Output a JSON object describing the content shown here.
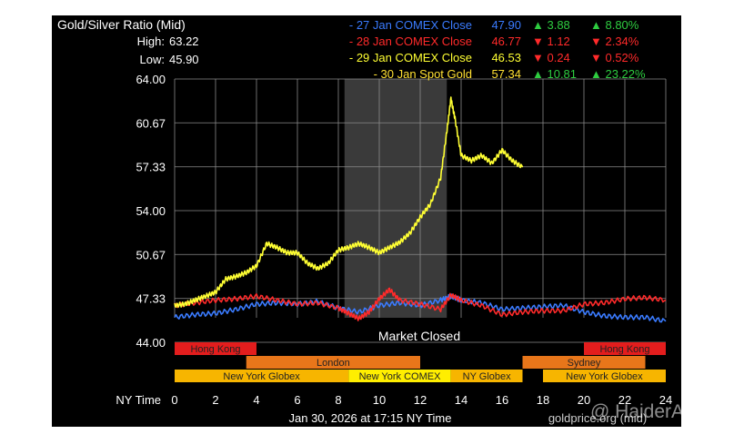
{
  "header": {
    "title": "Gold/Silver Ratio (Mid)",
    "high_label": "High:",
    "high_value": "63.22",
    "low_label": "Low:",
    "low_value": "45.90"
  },
  "legend": [
    {
      "label": "- 27 Jan COMEX Close",
      "value": "47.90",
      "change": "▲ 3.88",
      "pct": "▲ 8.80%",
      "color": "#3a7bff",
      "change_color": "#2ecc40"
    },
    {
      "label": "- 28 Jan COMEX Close",
      "value": "46.77",
      "change": "▼ 1.12",
      "pct": "▼ 2.34%",
      "color": "#ff2a2a",
      "change_color": "#ff2a2a"
    },
    {
      "label": "- 29 Jan COMEX Close",
      "value": "46.53",
      "change": "▼ 0.24",
      "pct": "▼ 0.52%",
      "color": "#ffff33",
      "change_color": "#ff2a2a"
    },
    {
      "label": "- 30 Jan Spot Gold",
      "value": "57.34",
      "change": "▲ 10.81",
      "pct": "▲ 23.22%",
      "color": "#ffe033",
      "change_color": "#2ecc40"
    }
  ],
  "market_closed_label": "Market Closed",
  "x_axis_label": "NY Time",
  "footer_date": "Jan 30, 2026 at 17:15 NY Time",
  "footer_source": "goldprice.org (mid)",
  "watermark": "@ HaiderAliiii",
  "sessions": [
    {
      "label": "Hong Kong",
      "row": 1,
      "start": 0,
      "end": 4,
      "color": "#e31d1d"
    },
    {
      "label": "Hong Kong",
      "row": 1,
      "start": 20,
      "end": 24,
      "color": "#e31d1d"
    },
    {
      "label": "London",
      "row": 2,
      "start": 3.5,
      "end": 12,
      "color": "#e8761a"
    },
    {
      "label": "Sydney",
      "row": 2,
      "start": 17,
      "end": 23,
      "color": "#e8761a"
    },
    {
      "label": "New York Globex",
      "row": 3,
      "start": 0,
      "end": 8.5,
      "color": "#f7b500"
    },
    {
      "label": "New York COMEX",
      "row": 3,
      "start": 8.5,
      "end": 13.5,
      "color": "#ffee00"
    },
    {
      "label": "NY Globex",
      "row": 3,
      "start": 13.5,
      "end": 17,
      "color": "#f7b500"
    },
    {
      "label": "New York Globex",
      "row": 3,
      "start": 18,
      "end": 24,
      "color": "#f7b500"
    }
  ],
  "chart_data": {
    "type": "line",
    "title": "Gold/Silver Ratio (Mid)",
    "xlabel": "NY Time",
    "ylabel": "",
    "xlim": [
      0,
      24
    ],
    "ylim": [
      44.0,
      64.0
    ],
    "x_ticks": [
      "0",
      "2",
      "4",
      "6",
      "8",
      "10",
      "12",
      "14",
      "16",
      "18",
      "20",
      "22",
      "24"
    ],
    "y_ticks": [
      "44.00",
      "47.33",
      "50.67",
      "54.00",
      "57.33",
      "60.67",
      "64.00"
    ],
    "grid": true,
    "legend_position": "top",
    "shaded_region": {
      "label": "Market Closed",
      "x_start": 8.3,
      "x_end": 13.3
    },
    "series": [
      {
        "name": "27 Jan COMEX Close",
        "color": "#3a7bff",
        "x": [
          0,
          1,
          2,
          3,
          4,
          5,
          6,
          7,
          8,
          9,
          10,
          11,
          12,
          13,
          13.5,
          14,
          15,
          16,
          17,
          18,
          19,
          20,
          21,
          22,
          23,
          24
        ],
        "y": [
          45.9,
          46.1,
          46.2,
          46.5,
          46.9,
          47.0,
          46.9,
          47.1,
          46.6,
          46.3,
          46.8,
          47.0,
          46.8,
          47.2,
          47.5,
          47.2,
          47.0,
          46.5,
          46.6,
          46.7,
          46.8,
          46.3,
          46.0,
          45.9,
          45.9,
          45.6
        ]
      },
      {
        "name": "28 Jan COMEX Close",
        "color": "#ff2a2a",
        "x": [
          0,
          1,
          2,
          3,
          4,
          5,
          6,
          7,
          8,
          8.5,
          9,
          9.5,
          10,
          10.5,
          11,
          12,
          13,
          13.5,
          14,
          15,
          16,
          17,
          18,
          19,
          20,
          21,
          22,
          23,
          24
        ],
        "y": [
          46.8,
          47.0,
          47.2,
          47.3,
          47.5,
          47.2,
          46.9,
          47.0,
          46.6,
          46.2,
          45.8,
          46.3,
          47.3,
          48.0,
          47.2,
          46.9,
          46.5,
          47.6,
          47.2,
          46.8,
          46.1,
          46.3,
          46.4,
          46.4,
          46.9,
          47.0,
          47.3,
          47.4,
          47.2
        ]
      },
      {
        "name": "29 Jan COMEX Close",
        "color": "#ffff33",
        "x": [
          0,
          0.5,
          1,
          1.5,
          2,
          2.5,
          3,
          3.5,
          4,
          4.5,
          5,
          5.5,
          6,
          6.5,
          7,
          7.5,
          8,
          8.5,
          9,
          9.5,
          10,
          10.5,
          11,
          11.5,
          12,
          12.5,
          13,
          13.3,
          13.5,
          13.7,
          14,
          14.5,
          15,
          15.5,
          16,
          16.5,
          17
        ],
        "y": [
          46.8,
          46.9,
          47.2,
          47.5,
          47.8,
          48.8,
          49.0,
          49.3,
          49.8,
          51.5,
          51.2,
          50.8,
          50.8,
          50.0,
          49.6,
          50.0,
          51.0,
          51.2,
          51.5,
          51.2,
          50.8,
          51.2,
          51.6,
          52.3,
          53.5,
          54.5,
          56.5,
          60.0,
          62.5,
          61.0,
          58.2,
          57.8,
          58.2,
          57.6,
          58.6,
          57.8,
          57.3
        ]
      }
    ]
  }
}
